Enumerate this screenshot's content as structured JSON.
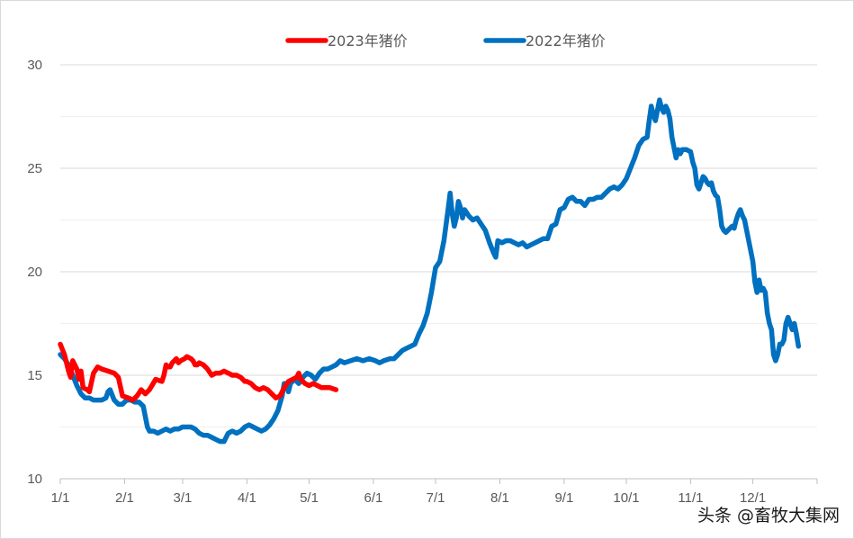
{
  "chart_data": {
    "type": "line",
    "title": "",
    "xlabel": "",
    "ylabel": "",
    "ylim": [
      10,
      30
    ],
    "yticks": [
      10,
      15,
      20,
      25,
      30
    ],
    "xlim": [
      0,
      365
    ],
    "xticks": [
      {
        "label": "1/1",
        "day": 0
      },
      {
        "label": "2/1",
        "day": 31
      },
      {
        "label": "3/1",
        "day": 59
      },
      {
        "label": "4/1",
        "day": 90
      },
      {
        "label": "5/1",
        "day": 120
      },
      {
        "label": "6/1",
        "day": 151
      },
      {
        "label": "7/1",
        "day": 181
      },
      {
        "label": "8/1",
        "day": 212
      },
      {
        "label": "9/1",
        "day": 243
      },
      {
        "label": "10/1",
        "day": 273
      },
      {
        "label": "11/1",
        "day": 304
      },
      {
        "label": "12/1",
        "day": 334
      }
    ],
    "grid": true,
    "legend_position": "top-center",
    "series": [
      {
        "name": "2023年猪价",
        "color": "#ff0000",
        "points": [
          [
            0,
            16.5
          ],
          [
            2,
            16.0
          ],
          [
            4,
            15.2
          ],
          [
            5,
            14.9
          ],
          [
            6,
            15.7
          ],
          [
            8,
            15.3
          ],
          [
            9,
            14.8
          ],
          [
            10,
            15.2
          ],
          [
            11,
            14.4
          ],
          [
            13,
            14.3
          ],
          [
            14,
            14.2
          ],
          [
            16,
            15.1
          ],
          [
            18,
            15.4
          ],
          [
            20,
            15.3
          ],
          [
            23,
            15.2
          ],
          [
            26,
            15.1
          ],
          [
            28,
            14.9
          ],
          [
            30,
            14.0
          ],
          [
            33,
            13.9
          ],
          [
            35,
            13.8
          ],
          [
            37,
            14.0
          ],
          [
            39,
            14.3
          ],
          [
            41,
            14.1
          ],
          [
            43,
            14.3
          ],
          [
            46,
            14.8
          ],
          [
            49,
            14.7
          ],
          [
            50,
            15.0
          ],
          [
            51,
            15.5
          ],
          [
            52,
            15.4
          ],
          [
            53,
            15.4
          ],
          [
            54,
            15.6
          ],
          [
            55,
            15.7
          ],
          [
            56,
            15.8
          ],
          [
            57,
            15.6
          ],
          [
            58,
            15.7
          ],
          [
            60,
            15.8
          ],
          [
            61,
            15.9
          ],
          [
            63,
            15.8
          ],
          [
            64,
            15.7
          ],
          [
            65,
            15.5
          ],
          [
            66,
            15.5
          ],
          [
            67,
            15.6
          ],
          [
            69,
            15.5
          ],
          [
            71,
            15.3
          ],
          [
            73,
            15.0
          ],
          [
            75,
            15.1
          ],
          [
            77,
            15.1
          ],
          [
            79,
            15.2
          ],
          [
            81,
            15.1
          ],
          [
            83,
            15.0
          ],
          [
            85,
            15.0
          ],
          [
            87,
            14.9
          ],
          [
            89,
            14.7
          ],
          [
            90,
            14.7
          ],
          [
            92,
            14.6
          ],
          [
            94,
            14.4
          ],
          [
            96,
            14.3
          ],
          [
            98,
            14.4
          ],
          [
            100,
            14.3
          ],
          [
            102,
            14.1
          ],
          [
            104,
            13.9
          ],
          [
            106,
            14.0
          ],
          [
            108,
            14.4
          ],
          [
            110,
            14.7
          ],
          [
            112,
            14.8
          ],
          [
            114,
            14.9
          ],
          [
            115,
            15.1
          ],
          [
            116,
            14.8
          ],
          [
            118,
            14.6
          ],
          [
            120,
            14.5
          ],
          [
            122,
            14.6
          ],
          [
            124,
            14.5
          ],
          [
            126,
            14.4
          ],
          [
            128,
            14.4
          ],
          [
            130,
            14.4
          ],
          [
            133,
            14.3
          ]
        ]
      },
      {
        "name": "2022年猪价",
        "color": "#0070c0",
        "points": [
          [
            0,
            16.0
          ],
          [
            2,
            15.8
          ],
          [
            4,
            15.5
          ],
          [
            6,
            15.0
          ],
          [
            8,
            14.5
          ],
          [
            10,
            14.1
          ],
          [
            12,
            13.9
          ],
          [
            14,
            13.9
          ],
          [
            16,
            13.8
          ],
          [
            18,
            13.8
          ],
          [
            20,
            13.8
          ],
          [
            22,
            13.9
          ],
          [
            23,
            14.2
          ],
          [
            24,
            14.3
          ],
          [
            26,
            13.8
          ],
          [
            28,
            13.6
          ],
          [
            30,
            13.6
          ],
          [
            32,
            13.8
          ],
          [
            34,
            13.8
          ],
          [
            36,
            13.7
          ],
          [
            38,
            13.7
          ],
          [
            40,
            13.5
          ],
          [
            42,
            12.5
          ],
          [
            43,
            12.3
          ],
          [
            45,
            12.3
          ],
          [
            47,
            12.2
          ],
          [
            49,
            12.3
          ],
          [
            51,
            12.4
          ],
          [
            53,
            12.3
          ],
          [
            55,
            12.4
          ],
          [
            57,
            12.4
          ],
          [
            59,
            12.5
          ],
          [
            61,
            12.5
          ],
          [
            63,
            12.5
          ],
          [
            65,
            12.4
          ],
          [
            67,
            12.2
          ],
          [
            69,
            12.1
          ],
          [
            71,
            12.1
          ],
          [
            73,
            12.0
          ],
          [
            75,
            11.9
          ],
          [
            77,
            11.8
          ],
          [
            79,
            11.8
          ],
          [
            81,
            12.2
          ],
          [
            83,
            12.3
          ],
          [
            85,
            12.2
          ],
          [
            87,
            12.3
          ],
          [
            89,
            12.5
          ],
          [
            91,
            12.6
          ],
          [
            93,
            12.5
          ],
          [
            95,
            12.4
          ],
          [
            97,
            12.3
          ],
          [
            99,
            12.4
          ],
          [
            101,
            12.6
          ],
          [
            103,
            12.9
          ],
          [
            105,
            13.3
          ],
          [
            107,
            14.0
          ],
          [
            108,
            14.6
          ],
          [
            109,
            14.6
          ],
          [
            110,
            14.2
          ],
          [
            111,
            14.6
          ],
          [
            113,
            14.8
          ],
          [
            115,
            14.6
          ],
          [
            117,
            14.9
          ],
          [
            119,
            15.1
          ],
          [
            121,
            15.0
          ],
          [
            123,
            14.8
          ],
          [
            125,
            15.1
          ],
          [
            127,
            15.3
          ],
          [
            129,
            15.3
          ],
          [
            131,
            15.4
          ],
          [
            133,
            15.5
          ],
          [
            135,
            15.7
          ],
          [
            137,
            15.6
          ],
          [
            140,
            15.7
          ],
          [
            143,
            15.8
          ],
          [
            146,
            15.7
          ],
          [
            149,
            15.8
          ],
          [
            152,
            15.7
          ],
          [
            154,
            15.6
          ],
          [
            156,
            15.7
          ],
          [
            159,
            15.8
          ],
          [
            161,
            15.8
          ],
          [
            163,
            16.0
          ],
          [
            165,
            16.2
          ],
          [
            167,
            16.3
          ],
          [
            169,
            16.4
          ],
          [
            171,
            16.5
          ],
          [
            173,
            17.0
          ],
          [
            175,
            17.4
          ],
          [
            177,
            18.0
          ],
          [
            179,
            19.0
          ],
          [
            181,
            20.2
          ],
          [
            183,
            20.5
          ],
          [
            185,
            21.5
          ],
          [
            187,
            23.0
          ],
          [
            188,
            23.8
          ],
          [
            189,
            22.8
          ],
          [
            190,
            22.2
          ],
          [
            191,
            22.6
          ],
          [
            192,
            23.4
          ],
          [
            193,
            23.1
          ],
          [
            194,
            22.6
          ],
          [
            195,
            23.0
          ],
          [
            197,
            22.7
          ],
          [
            199,
            22.5
          ],
          [
            201,
            22.6
          ],
          [
            203,
            22.3
          ],
          [
            205,
            22.0
          ],
          [
            207,
            21.4
          ],
          [
            209,
            20.9
          ],
          [
            210,
            20.7
          ],
          [
            211,
            21.5
          ],
          [
            213,
            21.4
          ],
          [
            215,
            21.5
          ],
          [
            217,
            21.5
          ],
          [
            219,
            21.4
          ],
          [
            221,
            21.3
          ],
          [
            223,
            21.4
          ],
          [
            225,
            21.2
          ],
          [
            227,
            21.3
          ],
          [
            229,
            21.4
          ],
          [
            231,
            21.5
          ],
          [
            233,
            21.6
          ],
          [
            235,
            21.6
          ],
          [
            237,
            22.2
          ],
          [
            239,
            22.3
          ],
          [
            241,
            23.0
          ],
          [
            243,
            23.1
          ],
          [
            245,
            23.5
          ],
          [
            247,
            23.6
          ],
          [
            249,
            23.4
          ],
          [
            251,
            23.4
          ],
          [
            253,
            23.2
          ],
          [
            255,
            23.5
          ],
          [
            257,
            23.5
          ],
          [
            259,
            23.6
          ],
          [
            261,
            23.6
          ],
          [
            263,
            23.8
          ],
          [
            265,
            24.0
          ],
          [
            267,
            24.1
          ],
          [
            269,
            24.0
          ],
          [
            271,
            24.2
          ],
          [
            273,
            24.5
          ],
          [
            275,
            25.0
          ],
          [
            277,
            25.5
          ],
          [
            279,
            26.1
          ],
          [
            281,
            26.4
          ],
          [
            283,
            26.5
          ],
          [
            284,
            27.3
          ],
          [
            285,
            28.0
          ],
          [
            286,
            27.6
          ],
          [
            287,
            27.3
          ],
          [
            288,
            27.8
          ],
          [
            289,
            28.3
          ],
          [
            290,
            27.9
          ],
          [
            291,
            27.7
          ],
          [
            292,
            28.0
          ],
          [
            293,
            27.8
          ],
          [
            294,
            27.4
          ],
          [
            295,
            26.5
          ],
          [
            296,
            26.0
          ],
          [
            297,
            25.5
          ],
          [
            298,
            25.9
          ],
          [
            299,
            25.7
          ],
          [
            300,
            25.9
          ],
          [
            302,
            25.9
          ],
          [
            304,
            25.8
          ],
          [
            305,
            25.3
          ],
          [
            306,
            25.0
          ],
          [
            307,
            24.2
          ],
          [
            308,
            24.0
          ],
          [
            309,
            24.3
          ],
          [
            310,
            24.6
          ],
          [
            311,
            24.5
          ],
          [
            312,
            24.3
          ],
          [
            313,
            24.2
          ],
          [
            314,
            24.3
          ],
          [
            315,
            23.9
          ],
          [
            316,
            23.7
          ],
          [
            317,
            23.6
          ],
          [
            318,
            23.0
          ],
          [
            319,
            22.2
          ],
          [
            320,
            22.0
          ],
          [
            321,
            21.9
          ],
          [
            322,
            22.0
          ],
          [
            323,
            22.1
          ],
          [
            324,
            22.2
          ],
          [
            325,
            22.1
          ],
          [
            326,
            22.5
          ],
          [
            327,
            22.8
          ],
          [
            328,
            23.0
          ],
          [
            329,
            22.7
          ],
          [
            330,
            22.5
          ],
          [
            331,
            22.0
          ],
          [
            332,
            21.5
          ],
          [
            333,
            21.0
          ],
          [
            334,
            20.5
          ],
          [
            335,
            19.5
          ],
          [
            336,
            19.0
          ],
          [
            337,
            19.6
          ],
          [
            338,
            19.1
          ],
          [
            339,
            19.2
          ],
          [
            340,
            19.0
          ],
          [
            341,
            18.0
          ],
          [
            342,
            17.5
          ],
          [
            343,
            17.2
          ],
          [
            344,
            16.0
          ],
          [
            345,
            15.7
          ],
          [
            346,
            16.0
          ],
          [
            347,
            16.5
          ],
          [
            348,
            16.5
          ],
          [
            349,
            16.7
          ],
          [
            350,
            17.5
          ],
          [
            351,
            17.8
          ],
          [
            352,
            17.5
          ],
          [
            353,
            17.2
          ],
          [
            354,
            17.5
          ],
          [
            355,
            17.0
          ],
          [
            356,
            16.4
          ]
        ]
      }
    ]
  },
  "watermark": "头条 @畜牧大集网"
}
